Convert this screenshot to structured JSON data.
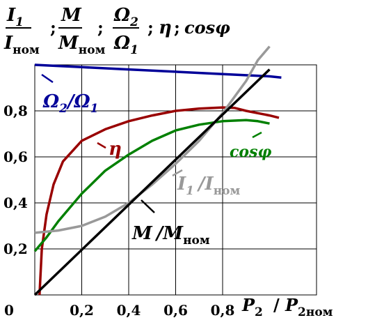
{
  "chart_data": {
    "type": "line",
    "title": {
      "i1": "I",
      "i1_sub": "1",
      "inom": "I",
      "inom_sub": "ном",
      "m": "M",
      "mnom": "M",
      "mnom_sub": "ном",
      "om2": "Ω",
      "om2_sub": "2",
      "om1": "Ω",
      "om1_sub": "1",
      "sep1": ";",
      "sep2": ";",
      "sep3": ";",
      "sep4": ";",
      "eta": "η",
      "cosphi": "cosφ"
    },
    "xlabel": {
      "p": "P",
      "p_sub": "2",
      "slash": "/",
      "p2": "P",
      "p2_sub": "2ном"
    },
    "xlim": [
      0,
      1.05
    ],
    "ylim": [
      0,
      1.0
    ],
    "x_ticks": [
      "0,2",
      "0,4",
      "0,6",
      "0,8"
    ],
    "x_tick_values": [
      0.2,
      0.4,
      0.6,
      0.8
    ],
    "y_ticks": [
      "0,2",
      "0,4",
      "0,6",
      "0,8"
    ],
    "y_tick_values": [
      0.2,
      0.4,
      0.6,
      0.8
    ],
    "origin_label": "0",
    "grid": true,
    "series": [
      {
        "key": "omega",
        "color": "#000099",
        "label": {
          "a": "Ω",
          "a_sub": "2",
          "slash": "/",
          "b": "Ω",
          "b_sub": "1"
        },
        "x": [
          0.0,
          0.2,
          0.4,
          0.6,
          0.8,
          1.0,
          1.05
        ],
        "y": [
          1.0,
          0.99,
          0.98,
          0.97,
          0.96,
          0.95,
          0.945
        ]
      },
      {
        "key": "eta",
        "color": "#990000",
        "label": {
          "a": "η"
        },
        "x": [
          0.02,
          0.03,
          0.05,
          0.08,
          0.12,
          0.2,
          0.3,
          0.4,
          0.5,
          0.6,
          0.7,
          0.8,
          0.85,
          0.9,
          0.95,
          1.0,
          1.04
        ],
        "y": [
          0.0,
          0.2,
          0.35,
          0.48,
          0.58,
          0.67,
          0.72,
          0.755,
          0.78,
          0.8,
          0.81,
          0.815,
          0.813,
          0.8,
          0.79,
          0.78,
          0.77
        ]
      },
      {
        "key": "cos",
        "color": "#008000",
        "label": {
          "a": "cosφ"
        },
        "x": [
          0.0,
          0.05,
          0.1,
          0.2,
          0.3,
          0.4,
          0.5,
          0.6,
          0.7,
          0.8,
          0.9,
          0.95,
          1.0
        ],
        "y": [
          0.19,
          0.25,
          0.32,
          0.44,
          0.54,
          0.61,
          0.67,
          0.715,
          0.74,
          0.755,
          0.76,
          0.755,
          0.745
        ]
      },
      {
        "key": "i1",
        "color": "#999999",
        "label": {
          "a": "I",
          "a_sub": "1",
          "slash": "/",
          "b": "I",
          "b_sub": "ном"
        },
        "x": [
          0.0,
          0.1,
          0.2,
          0.3,
          0.4,
          0.5,
          0.6,
          0.7,
          0.8,
          0.9,
          0.95,
          1.0
        ],
        "y": [
          0.27,
          0.28,
          0.3,
          0.34,
          0.4,
          0.48,
          0.57,
          0.67,
          0.79,
          0.93,
          1.02,
          1.08
        ]
      },
      {
        "key": "m",
        "color": "#000000",
        "label": {
          "a": "M",
          "slash": "/",
          "b": "M",
          "b_sub": "ном"
        },
        "x": [
          0.0,
          1.0
        ],
        "y": [
          0.0,
          0.98
        ]
      }
    ]
  }
}
